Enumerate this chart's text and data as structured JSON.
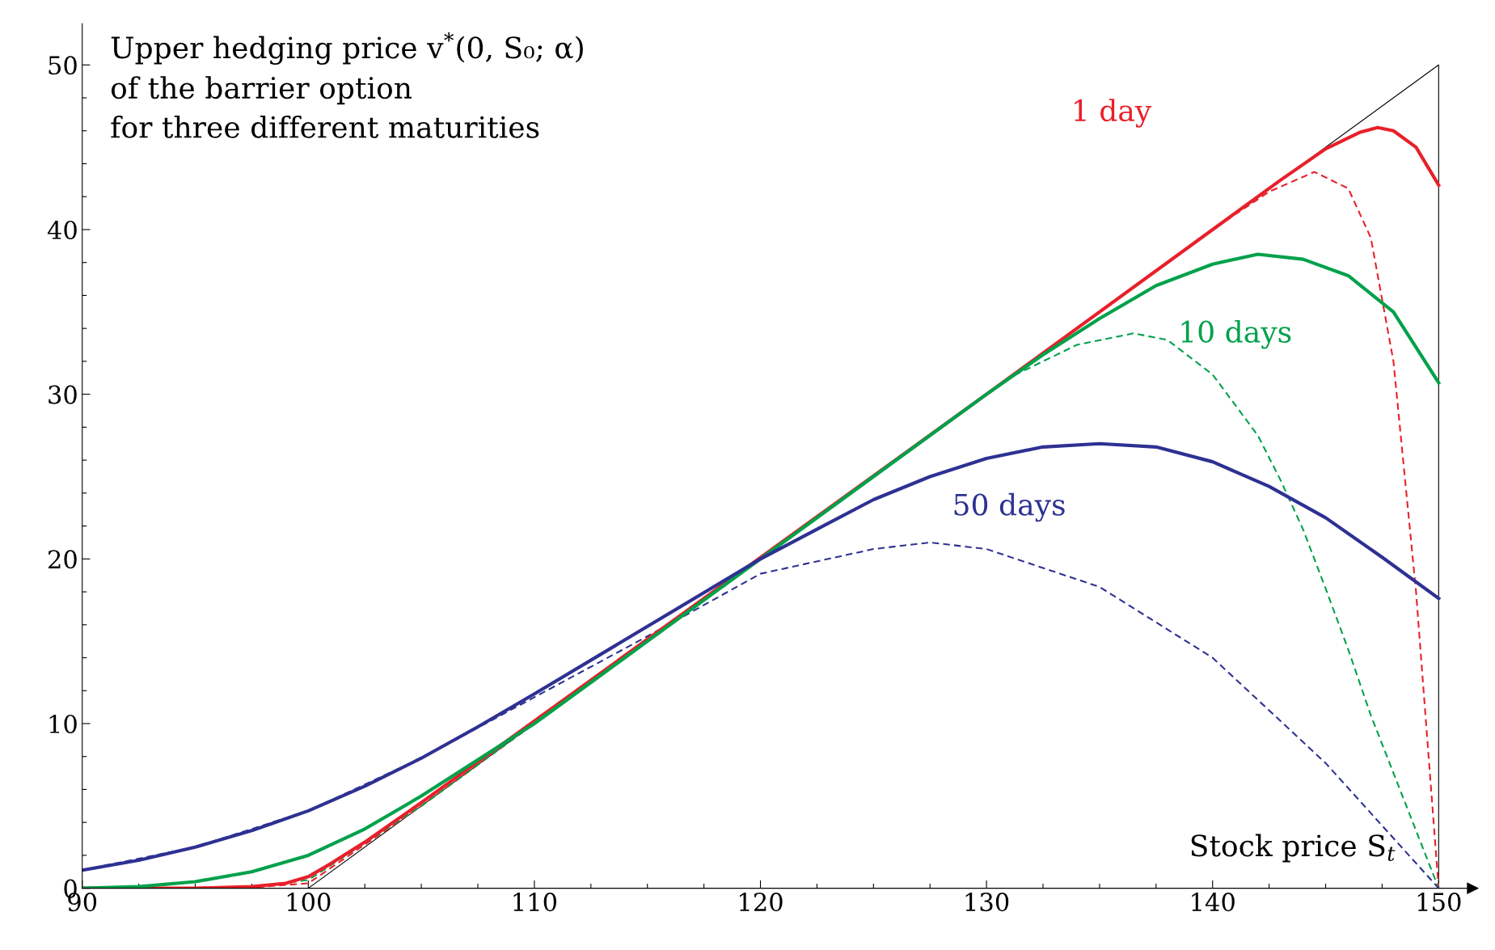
{
  "chart_data": {
    "type": "line",
    "title": "Upper hedging price v$^{*}$(0, S₀; α)\nof the barrier option\nfor three different maturities",
    "xlabel": "Stock price S$_{t}$",
    "legend": false,
    "grid": false,
    "marker": "none",
    "xlim": [
      90,
      151.5
    ],
    "ylim": [
      0,
      52.5
    ],
    "xticks": [
      90,
      {
        "value": 92.5,
        "label": null
      },
      {
        "value": 95,
        "label": null
      },
      {
        "value": 97.5,
        "label": null
      },
      100,
      {
        "value": 102.5,
        "label": null
      },
      {
        "value": 105,
        "label": null
      },
      {
        "value": 107.5,
        "label": null
      },
      110,
      {
        "value": 112.5,
        "label": null
      },
      {
        "value": 115,
        "label": null
      },
      {
        "value": 117.5,
        "label": null
      },
      120,
      {
        "value": 122.5,
        "label": null
      },
      {
        "value": 125,
        "label": null
      },
      {
        "value": 127.5,
        "label": null
      },
      130,
      {
        "value": 132.5,
        "label": null
      },
      {
        "value": 135,
        "label": null
      },
      {
        "value": 137.5,
        "label": null
      },
      140,
      {
        "value": 142.5,
        "label": null
      },
      {
        "value": 145,
        "label": null
      },
      {
        "value": 147.5,
        "label": null
      },
      150
    ],
    "yticks": [
      0,
      {
        "value": 2,
        "label": null
      },
      {
        "value": 4,
        "label": null
      },
      {
        "value": 6,
        "label": null
      },
      {
        "value": 8,
        "label": null
      },
      10,
      {
        "value": 12,
        "label": null
      },
      {
        "value": 14,
        "label": null
      },
      {
        "value": 16,
        "label": null
      },
      {
        "value": 18,
        "label": null
      },
      20,
      {
        "value": 22,
        "label": null
      },
      {
        "value": 24,
        "label": null
      },
      {
        "value": 26,
        "label": null
      },
      {
        "value": 28,
        "label": null
      },
      30,
      {
        "value": 32,
        "label": null
      },
      {
        "value": 34,
        "label": null
      },
      {
        "value": 36,
        "label": null
      },
      {
        "value": 38,
        "label": null
      },
      40,
      {
        "value": 42,
        "label": null
      },
      {
        "value": 44,
        "label": null
      },
      {
        "value": 46,
        "label": null
      },
      {
        "value": 48,
        "label": null
      },
      50
    ],
    "series": [
      {
        "color": "#000000",
        "line_style": "solid",
        "x": [
          90,
          100,
          150,
          150
        ],
        "values": [
          0,
          0,
          50,
          0
        ]
      },
      {
        "color": "#e8202a",
        "line_style": "dashed",
        "x": [
          90,
          97,
          100,
          105,
          110,
          130,
          140,
          142.5,
          144.5,
          146,
          147,
          148,
          149,
          150
        ],
        "values": [
          0,
          0,
          0.3,
          5,
          10,
          30,
          40,
          42.3,
          43.5,
          42.5,
          39.5,
          32,
          18,
          0
        ]
      },
      {
        "color": "#00a14b",
        "line_style": "dashed",
        "x": [
          90,
          97,
          100,
          105,
          110,
          120,
          125,
          128,
          131,
          134,
          136.5,
          138,
          140,
          142,
          143,
          144,
          145,
          146,
          147,
          148,
          149,
          150
        ],
        "values": [
          0,
          0,
          0.5,
          5,
          10,
          20,
          25,
          28,
          31,
          33,
          33.7,
          33.3,
          31.2,
          27.5,
          24.8,
          21.8,
          18.2,
          14.5,
          10.5,
          7,
          3.5,
          0
        ]
      },
      {
        "color": "#2e3192",
        "line_style": "dashed",
        "x": [
          90,
          95,
          100,
          105,
          110,
          115,
          120,
          125,
          127.5,
          130,
          135,
          140,
          145,
          150
        ],
        "values": [
          1.1,
          2.5,
          4.7,
          7.9,
          11.6,
          15.3,
          19.1,
          20.6,
          21,
          20.6,
          18.3,
          14,
          7.6,
          0
        ]
      },
      {
        "name": "1 day",
        "color": "#e8202a",
        "line_style": "solid",
        "x": [
          90,
          95,
          97.5,
          99,
          100,
          101,
          102.5,
          105,
          130,
          140,
          143,
          145,
          146.5,
          147.3,
          148,
          149,
          150
        ],
        "values": [
          0,
          0,
          0.1,
          0.3,
          0.7,
          1.5,
          2.8,
          5.2,
          30,
          40,
          43,
          44.9,
          45.9,
          46.2,
          46,
          45,
          42.7
        ]
      },
      {
        "name": "10 days",
        "color": "#00a14b",
        "line_style": "solid",
        "x": [
          90,
          92.5,
          95,
          97.5,
          100,
          102.5,
          105,
          107.5,
          110,
          115,
          120,
          125,
          130,
          132.5,
          135,
          137.5,
          140,
          142,
          144,
          146,
          148,
          150
        ],
        "values": [
          0,
          0.1,
          0.4,
          1,
          2,
          3.6,
          5.6,
          7.8,
          10,
          15,
          20,
          25,
          30,
          32.4,
          34.6,
          36.6,
          37.9,
          38.5,
          38.2,
          37.2,
          35,
          30.7
        ]
      },
      {
        "name": "50 days",
        "color": "#2e3192",
        "line_style": "solid",
        "x": [
          90,
          92.5,
          95,
          97.5,
          100,
          102.5,
          105,
          107.5,
          110,
          115,
          120,
          125,
          127.5,
          130,
          132.5,
          135,
          137.5,
          140,
          142.5,
          145,
          147.5,
          150
        ],
        "values": [
          1.1,
          1.7,
          2.5,
          3.5,
          4.7,
          6.2,
          7.9,
          9.8,
          11.8,
          15.9,
          20,
          23.6,
          25,
          26.1,
          26.8,
          27,
          26.8,
          25.9,
          24.4,
          22.5,
          20.1,
          17.6
        ]
      }
    ]
  }
}
